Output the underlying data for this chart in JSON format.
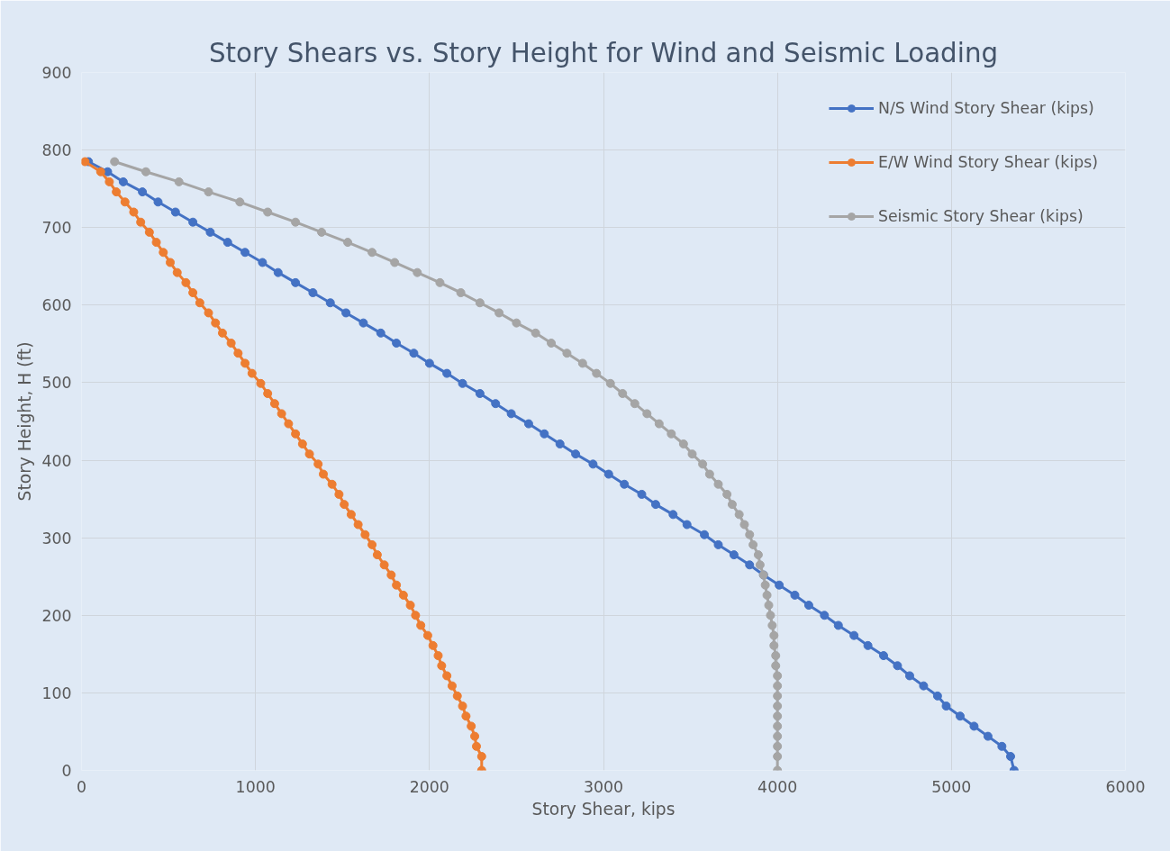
{
  "chart_data": {
    "type": "line",
    "title": "Story Shears vs. Story Height for Wind and Seismic Loading",
    "xlabel": "Story Shear, kips",
    "ylabel": "Story Height, H (ft)",
    "xlim": [
      0,
      6000
    ],
    "xticks": [
      0,
      1000,
      2000,
      3000,
      4000,
      5000,
      6000
    ],
    "ylim": [
      0,
      900
    ],
    "yticks": [
      0,
      100,
      200,
      300,
      400,
      500,
      600,
      700,
      800,
      900
    ],
    "grid": true,
    "legend": "right",
    "marker": "circle",
    "line_style": "solid",
    "series": [
      {
        "name": "N/S Wind Story Shear (kips)",
        "color": "#4472c4",
        "x": [
          5360,
          5340,
          5290,
          5210,
          5130,
          5050,
          4970,
          4920,
          4840,
          4760,
          4690,
          4610,
          4520,
          4440,
          4350,
          4270,
          4180,
          4100,
          4010,
          3920,
          3840,
          3750,
          3660,
          3580,
          3480,
          3400,
          3300,
          3220,
          3120,
          3030,
          2940,
          2840,
          2750,
          2660,
          2570,
          2470,
          2380,
          2290,
          2190,
          2100,
          2000,
          1910,
          1810,
          1720,
          1620,
          1520,
          1430,
          1330,
          1230,
          1130,
          1040,
          940,
          840,
          740,
          640,
          540,
          440,
          350,
          240,
          150,
          40
        ],
        "values": [
          0,
          18,
          31,
          44,
          57,
          70,
          83,
          96,
          109,
          122,
          135,
          148,
          161,
          174,
          187,
          200,
          213,
          226,
          239,
          252,
          265,
          278,
          291,
          304,
          317,
          330,
          343,
          356,
          369,
          382,
          395,
          408,
          421,
          434,
          447,
          460,
          473,
          486,
          499,
          512,
          525,
          538,
          551,
          564,
          577,
          590,
          603,
          616,
          629,
          642,
          655,
          668,
          681,
          694,
          707,
          720,
          733,
          746,
          759,
          772,
          785
        ]
      },
      {
        "name": "E/W Wind Story Shear (kips)",
        "color": "#ed7d31",
        "x": [
          2300,
          2300,
          2270,
          2260,
          2240,
          2210,
          2190,
          2160,
          2130,
          2100,
          2070,
          2050,
          2020,
          1990,
          1950,
          1920,
          1890,
          1850,
          1810,
          1780,
          1740,
          1700,
          1670,
          1630,
          1590,
          1550,
          1510,
          1480,
          1440,
          1390,
          1360,
          1310,
          1270,
          1230,
          1190,
          1150,
          1110,
          1070,
          1030,
          980,
          940,
          900,
          860,
          810,
          770,
          730,
          680,
          640,
          600,
          550,
          510,
          470,
          430,
          390,
          340,
          300,
          250,
          200,
          160,
          110,
          20
        ],
        "values": [
          0,
          18,
          31,
          44,
          57,
          70,
          83,
          96,
          109,
          122,
          135,
          148,
          161,
          174,
          187,
          200,
          213,
          226,
          239,
          252,
          265,
          278,
          291,
          304,
          317,
          330,
          343,
          356,
          369,
          382,
          395,
          408,
          421,
          434,
          447,
          460,
          473,
          486,
          499,
          512,
          525,
          538,
          551,
          564,
          577,
          590,
          603,
          616,
          629,
          642,
          655,
          668,
          681,
          694,
          707,
          720,
          733,
          746,
          759,
          772,
          785
        ]
      },
      {
        "name": "Seismic Story Shear (kips)",
        "color": "#a5a5a5",
        "x": [
          4000,
          4000,
          4000,
          4000,
          4000,
          4000,
          4000,
          4000,
          4000,
          4000,
          3990,
          3990,
          3980,
          3980,
          3970,
          3960,
          3950,
          3940,
          3930,
          3920,
          3900,
          3890,
          3860,
          3840,
          3810,
          3780,
          3740,
          3710,
          3660,
          3610,
          3570,
          3510,
          3460,
          3390,
          3320,
          3250,
          3180,
          3110,
          3040,
          2960,
          2880,
          2790,
          2700,
          2610,
          2500,
          2400,
          2290,
          2180,
          2060,
          1930,
          1800,
          1670,
          1530,
          1380,
          1230,
          1070,
          910,
          730,
          560,
          370,
          190
        ],
        "values": [
          0,
          18,
          31,
          44,
          57,
          70,
          83,
          96,
          109,
          122,
          135,
          148,
          161,
          174,
          187,
          200,
          213,
          226,
          239,
          252,
          265,
          278,
          291,
          304,
          317,
          330,
          343,
          356,
          369,
          382,
          395,
          408,
          421,
          434,
          447,
          460,
          473,
          486,
          499,
          512,
          525,
          538,
          551,
          564,
          577,
          590,
          603,
          616,
          629,
          642,
          655,
          668,
          681,
          694,
          707,
          720,
          733,
          746,
          759,
          772,
          785
        ]
      }
    ]
  }
}
